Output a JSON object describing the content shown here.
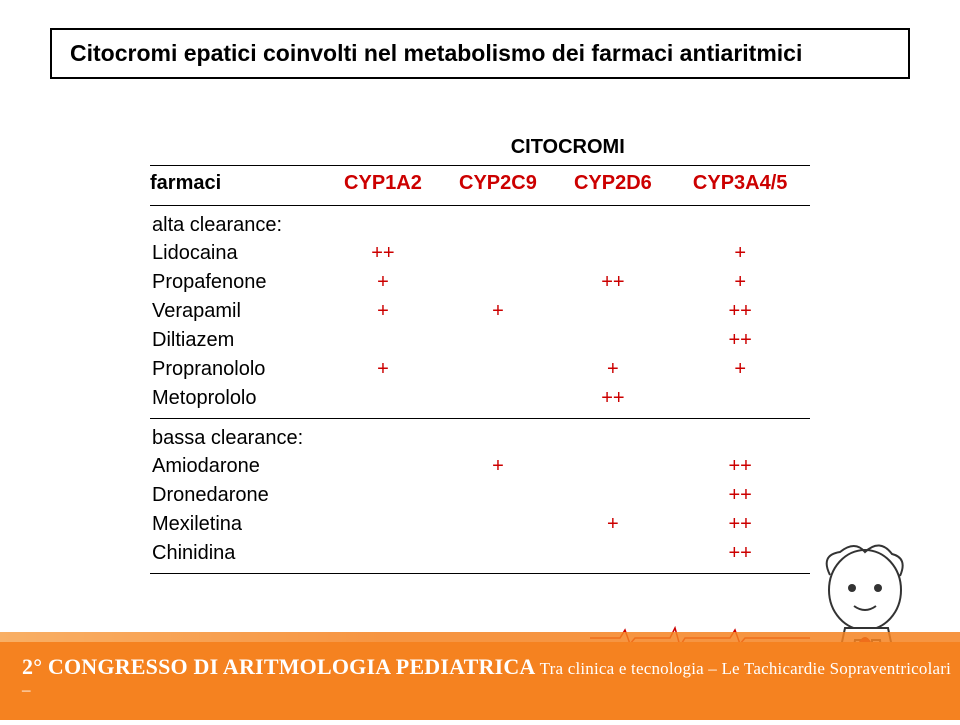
{
  "title": "Citocromi epatici coinvolti nel metabolismo dei farmaci antiaritmici",
  "table": {
    "supheader": "CITOCROMI",
    "row_label_header": "farmaci",
    "columns": [
      "CYP1A2",
      "CYP2C9",
      "CYP2D6",
      "CYP3A4/5"
    ],
    "sections": [
      {
        "label": "alta clearance:",
        "rows": [
          {
            "drug": "Lidocaina",
            "vals": [
              "++",
              "",
              "",
              "+"
            ]
          },
          {
            "drug": "Propafenone",
            "vals": [
              "+",
              "",
              "++",
              "+"
            ]
          },
          {
            "drug": "Verapamil",
            "vals": [
              "+",
              "+",
              "",
              "++"
            ]
          },
          {
            "drug": "Diltiazem",
            "vals": [
              "",
              "",
              "",
              "++"
            ]
          },
          {
            "drug": "Propranololo",
            "vals": [
              "+",
              "",
              "+",
              "+"
            ]
          },
          {
            "drug": "Metoprololo",
            "vals": [
              "",
              "",
              "++",
              ""
            ]
          }
        ]
      },
      {
        "label": "bassa clearance:",
        "rows": [
          {
            "drug": "Amiodarone",
            "vals": [
              "",
              "+",
              "",
              "++"
            ]
          },
          {
            "drug": "Dronedarone",
            "vals": [
              "",
              "",
              "",
              "++"
            ]
          },
          {
            "drug": "Mexiletina",
            "vals": [
              "",
              "",
              "+",
              "++"
            ]
          },
          {
            "drug": "Chinidina",
            "vals": [
              "",
              "",
              "",
              "++"
            ]
          }
        ]
      }
    ]
  },
  "footer": {
    "line1_big": "2° CONGRESSO DI ARITMOLOGIA PEDIATRICA",
    "line1_rest": " Tra clinica e tecnologia – Le Tachicardie Sopraventricolari –"
  },
  "colors": {
    "accent_red": "#cc0000",
    "footer_orange": "#f58220",
    "text_black": "#000000",
    "bg_white": "#ffffff"
  }
}
